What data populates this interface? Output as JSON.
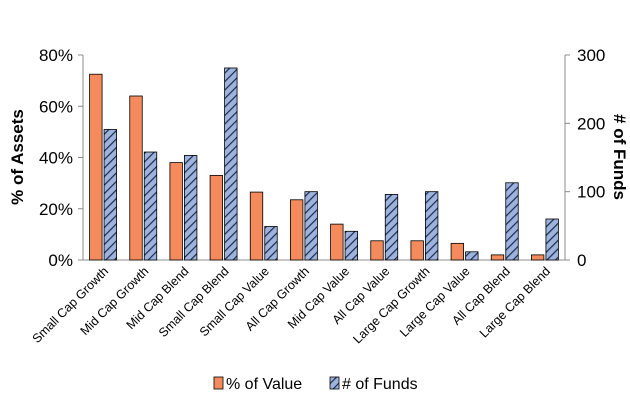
{
  "chart_data": {
    "type": "bar",
    "title": "",
    "categories": [
      "Small Cap Growth",
      "Mid Cap Growth",
      "Mid Cap Blend",
      "Small Cap Blend",
      "Small Cap Value",
      "All Cap Growth",
      "Mid Cap Value",
      "All Cap Value",
      "Large Cap Growth",
      "Large Cap Value",
      "All Cap Blend",
      "Large Cap Blend"
    ],
    "series": [
      {
        "name": "% of Value",
        "axis": "left",
        "color": "#F58B5C",
        "values": [
          72.5,
          64,
          38,
          33,
          26.5,
          23.5,
          14,
          7.5,
          7.5,
          6.5,
          2,
          2
        ]
      },
      {
        "name": "# of Funds",
        "axis": "right",
        "color": "#9DB3DD",
        "pattern": "hatched",
        "values": [
          191,
          158,
          153,
          281,
          49,
          100,
          42,
          96,
          100,
          12,
          113,
          60
        ]
      }
    ],
    "ylabel_left": "% of Assets",
    "ylabel_right": "# of Funds",
    "ylim_left": [
      0,
      80
    ],
    "ylim_right": [
      0,
      300
    ],
    "yticks_left": [
      "0%",
      "20%",
      "40%",
      "60%",
      "80%"
    ],
    "yticks_right": [
      "0",
      "100",
      "200",
      "300"
    ],
    "grid": false,
    "legend_position": "bottom"
  }
}
